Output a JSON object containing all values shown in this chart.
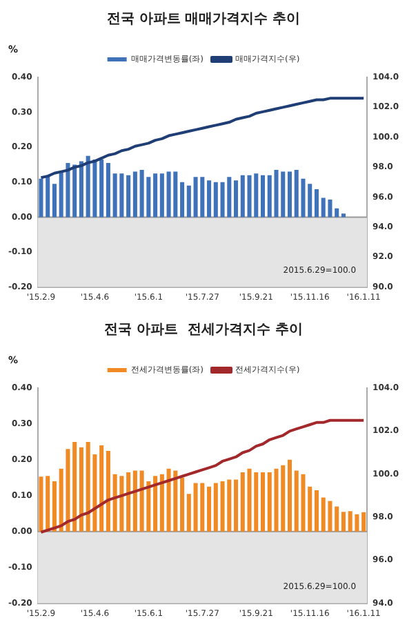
{
  "chart_data": [
    {
      "type": "bar",
      "title": "전국 아파트 매매가격지수 추이",
      "ylabel": "%",
      "legend": "top",
      "marker": "none",
      "categories": [
        "'15.2.9",
        null,
        null,
        null,
        null,
        null,
        null,
        null,
        "'15.4.6",
        null,
        null,
        null,
        null,
        null,
        null,
        null,
        "'15.6.1",
        null,
        null,
        null,
        null,
        null,
        null,
        null,
        "'15.7.27",
        null,
        null,
        null,
        null,
        null,
        null,
        null,
        "'15.9.21",
        null,
        null,
        null,
        null,
        null,
        null,
        null,
        "'15.11.16",
        null,
        null,
        null,
        null,
        null,
        null,
        null,
        "'16.1.11"
      ],
      "ylim": [
        -0.2,
        0.4
      ],
      "yticks": [
        {
          "value": -0.2,
          "label": "-0.20"
        },
        {
          "value": -0.1,
          "label": "-0.10"
        },
        {
          "value": 0,
          "label": "0.00"
        },
        {
          "value": 0.1,
          "label": "0.10"
        },
        {
          "value": 0.2,
          "label": "0.20"
        },
        {
          "value": 0.3,
          "label": "0.30"
        },
        {
          "value": 0.4,
          "label": "0.40"
        }
      ],
      "y2lim": [
        90,
        104
      ],
      "y2ticks": [
        {
          "value": 90,
          "label": "90.0"
        },
        {
          "value": 92,
          "label": "92.0"
        },
        {
          "value": 94,
          "label": "94.0"
        },
        {
          "value": 96,
          "label": "96.0"
        },
        {
          "value": 98,
          "label": "98.0"
        },
        {
          "value": 100,
          "label": "100.0"
        },
        {
          "value": 102,
          "label": "102.0"
        },
        {
          "value": 104,
          "label": "104.0"
        }
      ],
      "bands": [
        {
          "axis": "y",
          "from": -0.2,
          "to": 0,
          "color": "#e4e4e4"
        }
      ],
      "annotations": [
        "2015.6.29=100.0"
      ],
      "series": [
        {
          "name": "매매가격변동률(좌)",
          "color": "#3f72b8",
          "values": [
            0.11,
            0.12,
            0.095,
            0.13,
            0.155,
            0.15,
            0.16,
            0.175,
            0.165,
            0.165,
            0.155,
            0.125,
            0.125,
            0.12,
            0.13,
            0.135,
            0.115,
            0.125,
            0.125,
            0.13,
            0.13,
            0.1,
            0.09,
            0.115,
            0.115,
            0.105,
            0.1,
            0.1,
            0.115,
            0.105,
            0.12,
            0.12,
            0.125,
            0.12,
            0.12,
            0.135,
            0.13,
            0.13,
            0.135,
            0.11,
            0.095,
            0.08,
            0.055,
            0.05,
            0.025,
            0.01,
            0.0,
            0.0,
            0.0
          ]
        },
        {
          "name": "매매가격지수(우)",
          "type": "line",
          "axis": "y2",
          "color": "#1f3e75",
          "values": [
            97.3,
            97.4,
            97.6,
            97.7,
            97.8,
            98.0,
            98.1,
            98.3,
            98.4,
            98.6,
            98.8,
            98.9,
            99.1,
            99.2,
            99.4,
            99.5,
            99.6,
            99.8,
            99.9,
            100.1,
            100.2,
            100.3,
            100.4,
            100.5,
            100.6,
            100.7,
            100.8,
            100.9,
            101.0,
            101.2,
            101.3,
            101.4,
            101.6,
            101.7,
            101.8,
            101.9,
            102.0,
            102.1,
            102.2,
            102.3,
            102.4,
            102.5,
            102.5,
            102.6,
            102.6,
            102.6,
            102.6,
            102.6,
            102.6
          ]
        }
      ]
    },
    {
      "type": "bar",
      "title": "전국 아파트  전세가격지수 추이",
      "ylabel": "%",
      "legend": "top",
      "marker": "none",
      "categories": [
        "'15.2.9",
        null,
        null,
        null,
        null,
        null,
        null,
        null,
        "'15.4.6",
        null,
        null,
        null,
        null,
        null,
        null,
        null,
        "'15.6.1",
        null,
        null,
        null,
        null,
        null,
        null,
        null,
        "'15.7.27",
        null,
        null,
        null,
        null,
        null,
        null,
        null,
        "'15.9.21",
        null,
        null,
        null,
        null,
        null,
        null,
        null,
        "'15.11.16",
        null,
        null,
        null,
        null,
        null,
        null,
        null,
        "'16.1.11"
      ],
      "ylim": [
        -0.2,
        0.4
      ],
      "yticks": [
        {
          "value": -0.2,
          "label": "-0.20"
        },
        {
          "value": -0.1,
          "label": "-0.10"
        },
        {
          "value": 0,
          "label": "0.00"
        },
        {
          "value": 0.1,
          "label": "0.10"
        },
        {
          "value": 0.2,
          "label": "0.20"
        },
        {
          "value": 0.3,
          "label": "0.30"
        },
        {
          "value": 0.4,
          "label": "0.40"
        }
      ],
      "y2lim": [
        94,
        104
      ],
      "y2ticks": [
        {
          "value": 94,
          "label": "94.0"
        },
        {
          "value": 96,
          "label": "96.0"
        },
        {
          "value": 98,
          "label": "98.0"
        },
        {
          "value": 100,
          "label": "100.0"
        },
        {
          "value": 102,
          "label": "102.0"
        },
        {
          "value": 104,
          "label": "104.0"
        }
      ],
      "bands": [
        {
          "axis": "y",
          "from": -0.2,
          "to": 0,
          "color": "#e4e4e4"
        }
      ],
      "annotations": [
        "2015.6.29=100.0"
      ],
      "series": [
        {
          "name": "전세가격변동률(좌)",
          "color": "#f08a24",
          "values": [
            0.153,
            0.155,
            0.14,
            0.175,
            0.23,
            0.25,
            0.235,
            0.25,
            0.215,
            0.24,
            0.225,
            0.16,
            0.155,
            0.165,
            0.17,
            0.17,
            0.14,
            0.155,
            0.16,
            0.175,
            0.17,
            0.15,
            0.105,
            0.135,
            0.135,
            0.125,
            0.135,
            0.14,
            0.145,
            0.145,
            0.165,
            0.175,
            0.165,
            0.165,
            0.165,
            0.175,
            0.185,
            0.2,
            0.17,
            0.16,
            0.125,
            0.115,
            0.095,
            0.085,
            0.07,
            0.055,
            0.057,
            0.048,
            0.054
          ]
        },
        {
          "name": "전세가격지수(우)",
          "type": "line",
          "axis": "y2",
          "color": "#a3282b",
          "values": [
            97.3,
            97.4,
            97.5,
            97.6,
            97.8,
            97.9,
            98.1,
            98.2,
            98.4,
            98.6,
            98.8,
            98.9,
            99.0,
            99.1,
            99.2,
            99.3,
            99.4,
            99.5,
            99.6,
            99.7,
            99.8,
            99.9,
            100.0,
            100.1,
            100.2,
            100.3,
            100.4,
            100.6,
            100.7,
            100.8,
            101.0,
            101.1,
            101.3,
            101.4,
            101.6,
            101.7,
            101.8,
            102.0,
            102.1,
            102.2,
            102.3,
            102.4,
            102.4,
            102.5,
            102.5,
            102.5,
            102.5,
            102.5,
            102.5
          ]
        }
      ]
    }
  ]
}
